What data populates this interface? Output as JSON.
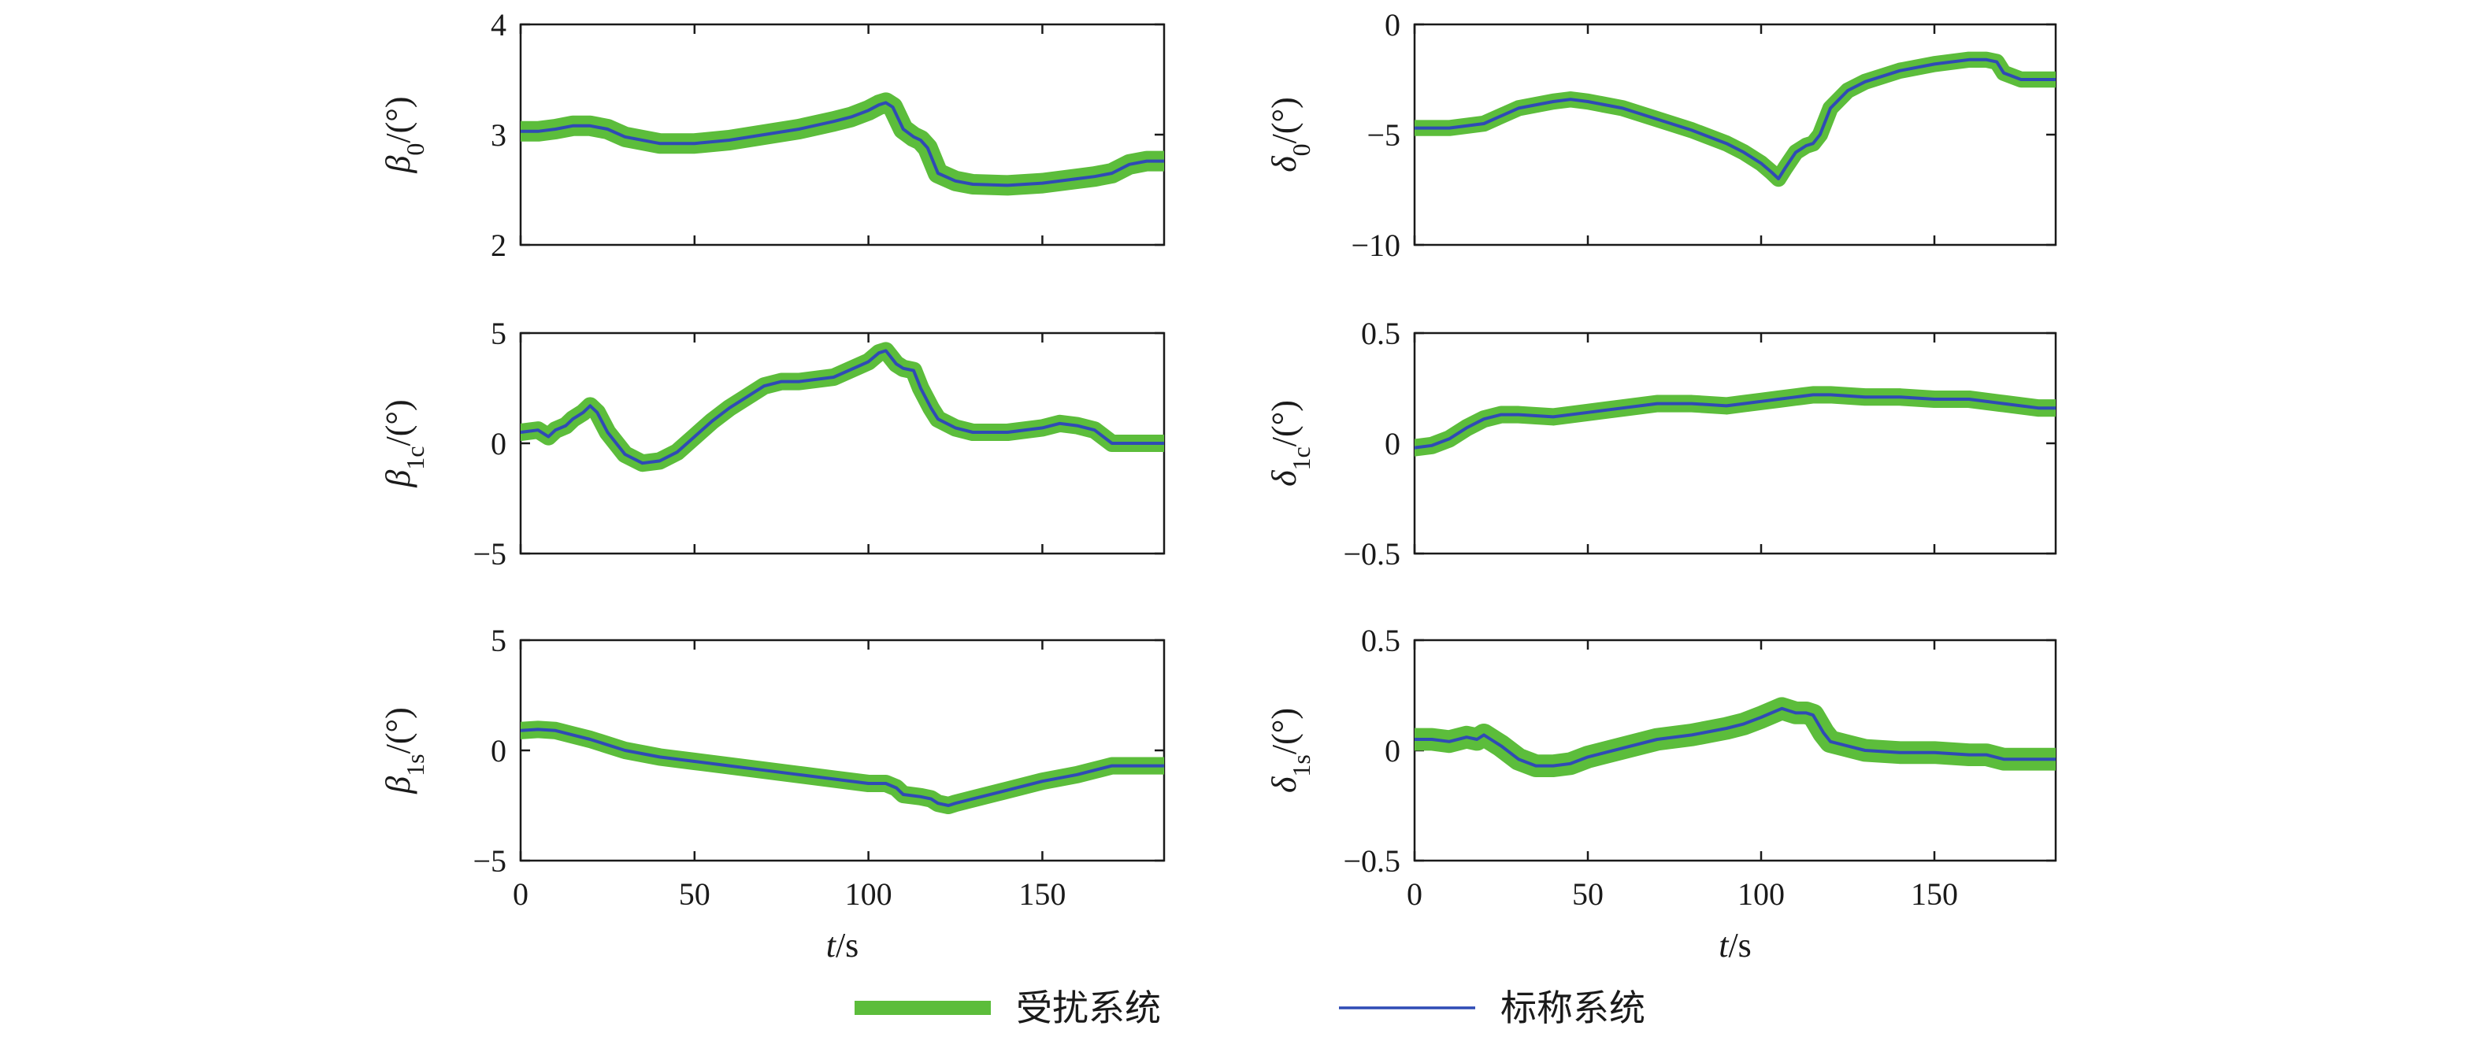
{
  "colors": {
    "perturbed": "#5cbd3b",
    "nominal": "#2f4bb5",
    "axis": "#1a1a1a"
  },
  "legend": [
    {
      "name": "受扰系统",
      "color": "#5cbd3b",
      "style": "thick"
    },
    {
      "name": "标称系统",
      "color": "#2f4bb5",
      "style": "thin"
    }
  ],
  "chart_data": [
    {
      "type": "line",
      "id": "beta0",
      "ylabel": {
        "sym": "β",
        "sub": "0",
        "unit": "/(°)"
      },
      "xlim": [
        0,
        185
      ],
      "ylim": [
        2,
        4
      ],
      "yticks": [
        2,
        3,
        4
      ],
      "xticks": [
        0,
        50,
        100,
        150
      ],
      "show_xticklabels": false,
      "xlabel": "",
      "x": [
        0,
        5,
        10,
        15,
        20,
        25,
        30,
        40,
        50,
        60,
        70,
        80,
        90,
        95,
        100,
        103,
        105,
        107,
        110,
        113,
        115,
        117,
        120,
        125,
        130,
        140,
        150,
        160,
        165,
        170,
        175,
        180,
        185
      ],
      "series": [
        {
          "values": [
            3.03,
            3.03,
            3.05,
            3.08,
            3.08,
            3.05,
            2.98,
            2.92,
            2.92,
            2.95,
            3.0,
            3.05,
            3.12,
            3.16,
            3.22,
            3.27,
            3.29,
            3.25,
            3.05,
            2.98,
            2.95,
            2.88,
            2.65,
            2.58,
            2.55,
            2.54,
            2.56,
            2.6,
            2.62,
            2.65,
            2.73,
            2.76,
            2.76
          ],
          "band": 0.05
        },
        {
          "values": [
            3.03,
            3.03,
            3.05,
            3.08,
            3.08,
            3.05,
            2.98,
            2.92,
            2.92,
            2.95,
            3.0,
            3.05,
            3.12,
            3.16,
            3.22,
            3.27,
            3.29,
            3.25,
            3.05,
            2.98,
            2.95,
            2.88,
            2.65,
            2.58,
            2.55,
            2.54,
            2.56,
            2.6,
            2.62,
            2.65,
            2.73,
            2.76,
            2.76
          ]
        }
      ]
    },
    {
      "type": "line",
      "id": "delta0",
      "ylabel": {
        "sym": "δ",
        "sub": "0",
        "unit": "/(°)"
      },
      "xlim": [
        0,
        185
      ],
      "ylim": [
        -10,
        0
      ],
      "yticks": [
        -10,
        -5,
        0
      ],
      "xticks": [
        0,
        50,
        100,
        150
      ],
      "show_xticklabels": false,
      "xlabel": "",
      "x": [
        0,
        10,
        20,
        30,
        40,
        45,
        50,
        60,
        70,
        80,
        90,
        95,
        100,
        103,
        105,
        107,
        110,
        113,
        115,
        117,
        120,
        125,
        130,
        140,
        150,
        160,
        165,
        168,
        170,
        175,
        180,
        185
      ],
      "series": [
        {
          "values": [
            -4.7,
            -4.7,
            -4.5,
            -3.8,
            -3.5,
            -3.4,
            -3.5,
            -3.8,
            -4.3,
            -4.8,
            -5.4,
            -5.8,
            -6.3,
            -6.7,
            -7.0,
            -6.5,
            -5.8,
            -5.5,
            -5.4,
            -5.0,
            -3.8,
            -3.0,
            -2.6,
            -2.1,
            -1.8,
            -1.6,
            -1.6,
            -1.7,
            -2.2,
            -2.5,
            -2.5,
            -2.5
          ],
          "band": 0.15
        },
        {
          "values": [
            -4.7,
            -4.7,
            -4.5,
            -3.8,
            -3.5,
            -3.4,
            -3.5,
            -3.8,
            -4.3,
            -4.8,
            -5.4,
            -5.8,
            -6.3,
            -6.7,
            -7.0,
            -6.5,
            -5.8,
            -5.5,
            -5.4,
            -5.0,
            -3.8,
            -3.0,
            -2.6,
            -2.1,
            -1.8,
            -1.6,
            -1.6,
            -1.7,
            -2.2,
            -2.5,
            -2.5,
            -2.5
          ]
        }
      ]
    },
    {
      "type": "line",
      "id": "beta1c",
      "ylabel": {
        "sym": "β",
        "sub": "1c",
        "unit": "/(°)"
      },
      "xlim": [
        0,
        185
      ],
      "ylim": [
        -5,
        5
      ],
      "yticks": [
        -5,
        0,
        5
      ],
      "xticks": [
        0,
        50,
        100,
        150
      ],
      "show_xticklabels": false,
      "xlabel": "",
      "x": [
        0,
        5,
        8,
        10,
        13,
        15,
        18,
        20,
        22,
        25,
        30,
        35,
        40,
        45,
        50,
        55,
        60,
        65,
        70,
        75,
        80,
        90,
        100,
        103,
        105,
        108,
        110,
        113,
        115,
        118,
        120,
        125,
        130,
        140,
        150,
        155,
        160,
        165,
        170,
        175,
        180,
        185
      ],
      "series": [
        {
          "values": [
            0.5,
            0.6,
            0.3,
            0.6,
            0.8,
            1.1,
            1.4,
            1.7,
            1.4,
            0.5,
            -0.5,
            -0.9,
            -0.8,
            -0.4,
            0.3,
            1.0,
            1.6,
            2.1,
            2.6,
            2.8,
            2.8,
            3.0,
            3.7,
            4.1,
            4.2,
            3.6,
            3.4,
            3.3,
            2.5,
            1.6,
            1.1,
            0.7,
            0.5,
            0.5,
            0.7,
            0.9,
            0.8,
            0.6,
            0.0,
            0.0,
            0.0,
            0.0
          ],
          "band": 0.18
        },
        {
          "values": [
            0.5,
            0.6,
            0.3,
            0.6,
            0.8,
            1.1,
            1.4,
            1.7,
            1.4,
            0.5,
            -0.5,
            -0.9,
            -0.8,
            -0.4,
            0.3,
            1.0,
            1.6,
            2.1,
            2.6,
            2.8,
            2.8,
            3.0,
            3.7,
            4.1,
            4.2,
            3.6,
            3.4,
            3.3,
            2.5,
            1.6,
            1.1,
            0.7,
            0.5,
            0.5,
            0.7,
            0.9,
            0.8,
            0.6,
            0.0,
            0.0,
            0.0,
            0.0
          ]
        }
      ]
    },
    {
      "type": "line",
      "id": "delta1c",
      "ylabel": {
        "sym": "δ",
        "sub": "1c",
        "unit": "/(°)"
      },
      "xlim": [
        0,
        185
      ],
      "ylim": [
        -0.5,
        0.5
      ],
      "yticks": [
        -0.5,
        0,
        0.5
      ],
      "xticks": [
        0,
        50,
        100,
        150
      ],
      "show_xticklabels": false,
      "xlabel": "",
      "x": [
        0,
        5,
        10,
        15,
        20,
        25,
        30,
        40,
        50,
        60,
        70,
        75,
        80,
        90,
        95,
        100,
        105,
        110,
        115,
        120,
        130,
        140,
        150,
        160,
        170,
        180,
        185
      ],
      "series": [
        {
          "values": [
            -0.02,
            -0.01,
            0.02,
            0.07,
            0.11,
            0.13,
            0.13,
            0.12,
            0.14,
            0.16,
            0.18,
            0.18,
            0.18,
            0.17,
            0.18,
            0.19,
            0.2,
            0.21,
            0.22,
            0.22,
            0.21,
            0.21,
            0.2,
            0.2,
            0.18,
            0.16,
            0.16
          ],
          "band": 0.018
        },
        {
          "values": [
            -0.02,
            -0.01,
            0.02,
            0.07,
            0.11,
            0.13,
            0.13,
            0.12,
            0.14,
            0.16,
            0.18,
            0.18,
            0.18,
            0.17,
            0.18,
            0.19,
            0.2,
            0.21,
            0.22,
            0.22,
            0.21,
            0.21,
            0.2,
            0.2,
            0.18,
            0.16,
            0.16
          ]
        }
      ]
    },
    {
      "type": "line",
      "id": "beta1s",
      "ylabel": {
        "sym": "β",
        "sub": "1s",
        "unit": "/(°)"
      },
      "xlim": [
        0,
        185
      ],
      "ylim": [
        -5,
        5
      ],
      "yticks": [
        -5,
        0,
        5
      ],
      "xticks": [
        0,
        50,
        100,
        150
      ],
      "show_xticklabels": true,
      "xlabel": "t/s",
      "x": [
        0,
        5,
        10,
        15,
        20,
        30,
        40,
        50,
        60,
        70,
        80,
        90,
        100,
        105,
        108,
        110,
        115,
        118,
        120,
        123,
        125,
        130,
        140,
        150,
        160,
        165,
        170,
        175,
        180,
        185
      ],
      "series": [
        {
          "values": [
            0.9,
            0.95,
            0.9,
            0.7,
            0.5,
            0.0,
            -0.3,
            -0.5,
            -0.7,
            -0.9,
            -1.1,
            -1.3,
            -1.5,
            -1.5,
            -1.7,
            -2.0,
            -2.1,
            -2.2,
            -2.4,
            -2.5,
            -2.4,
            -2.2,
            -1.8,
            -1.4,
            -1.1,
            -0.9,
            -0.7,
            -0.7,
            -0.7,
            -0.7
          ],
          "band": 0.18
        },
        {
          "values": [
            0.9,
            0.95,
            0.9,
            0.7,
            0.5,
            0.0,
            -0.3,
            -0.5,
            -0.7,
            -0.9,
            -1.1,
            -1.3,
            -1.5,
            -1.5,
            -1.7,
            -2.0,
            -2.1,
            -2.2,
            -2.4,
            -2.5,
            -2.4,
            -2.2,
            -1.8,
            -1.4,
            -1.1,
            -0.9,
            -0.7,
            -0.7,
            -0.7,
            -0.7
          ]
        }
      ]
    },
    {
      "type": "line",
      "id": "delta1s",
      "ylabel": {
        "sym": "δ",
        "sub": "1s",
        "unit": "/(°)"
      },
      "xlim": [
        0,
        185
      ],
      "ylim": [
        -0.5,
        0.5
      ],
      "yticks": [
        -0.5,
        0,
        0.5
      ],
      "xticks": [
        0,
        50,
        100,
        150
      ],
      "show_xticklabels": true,
      "xlabel": "t/s",
      "x": [
        0,
        5,
        10,
        15,
        18,
        20,
        22,
        25,
        30,
        35,
        40,
        45,
        50,
        60,
        70,
        80,
        90,
        95,
        100,
        103,
        106,
        108,
        110,
        113,
        115,
        118,
        120,
        125,
        130,
        140,
        150,
        160,
        165,
        170,
        175,
        180,
        185
      ],
      "series": [
        {
          "values": [
            0.05,
            0.05,
            0.04,
            0.06,
            0.05,
            0.07,
            0.05,
            0.02,
            -0.04,
            -0.07,
            -0.07,
            -0.06,
            -0.03,
            0.01,
            0.05,
            0.07,
            0.1,
            0.12,
            0.15,
            0.17,
            0.19,
            0.18,
            0.17,
            0.17,
            0.16,
            0.08,
            0.04,
            0.02,
            0.0,
            -0.01,
            -0.01,
            -0.02,
            -0.02,
            -0.04,
            -0.04,
            -0.04,
            -0.04
          ],
          "band": 0.03
        },
        {
          "values": [
            0.05,
            0.05,
            0.04,
            0.06,
            0.05,
            0.07,
            0.05,
            0.02,
            -0.04,
            -0.07,
            -0.07,
            -0.06,
            -0.03,
            0.01,
            0.05,
            0.07,
            0.1,
            0.12,
            0.15,
            0.17,
            0.19,
            0.18,
            0.17,
            0.17,
            0.16,
            0.08,
            0.04,
            0.02,
            0.0,
            -0.01,
            -0.01,
            -0.02,
            -0.02,
            -0.04,
            -0.04,
            -0.04,
            -0.04
          ]
        }
      ]
    }
  ]
}
